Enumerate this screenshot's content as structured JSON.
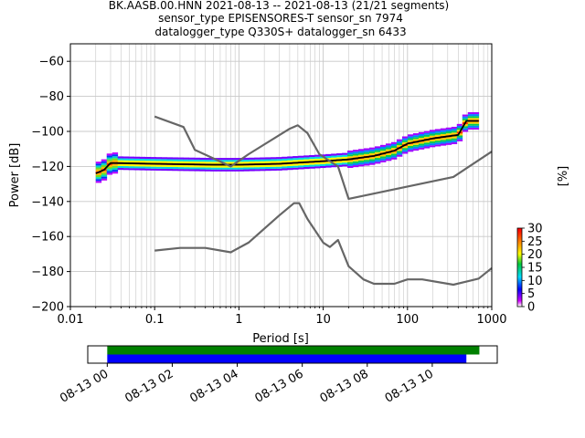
{
  "header": {
    "line1": "BK.AASB.00.HNN   2021-08-13 -- 2021-08-13  (21/21 segments)",
    "line2": "sensor_type EPISENSORES-T sensor_sn 7974",
    "line3": "datalogger_type Q330S+ datalogger_sn 6433"
  },
  "chart_data": [
    {
      "type": "heatmap",
      "xlabel": "Period [s]",
      "ylabel": "Power [dB]",
      "xscale": "log",
      "xlim": [
        0.01,
        1000
      ],
      "ylim": [
        -200,
        -50
      ],
      "grid": true,
      "xticks": [
        {
          "v": 0.01,
          "label": "0.01"
        },
        {
          "v": 0.1,
          "label": "0.1"
        },
        {
          "v": 1,
          "label": "1"
        },
        {
          "v": 10,
          "label": "10"
        },
        {
          "v": 100,
          "label": "100"
        },
        {
          "v": 1000,
          "label": "1000"
        }
      ],
      "yticks": [
        {
          "v": -60,
          "label": "−60"
        },
        {
          "v": -80,
          "label": "−80"
        },
        {
          "v": -100,
          "label": "−100"
        },
        {
          "v": -120,
          "label": "−120"
        },
        {
          "v": -140,
          "label": "−140"
        },
        {
          "v": -160,
          "label": "−160"
        },
        {
          "v": -180,
          "label": "−180"
        },
        {
          "v": -200,
          "label": "−200"
        }
      ],
      "series": [
        {
          "name": "",
          "color": "#000000",
          "points": [
            [
              0.02,
              -124
            ],
            [
              0.025,
              -122
            ],
            [
              0.03,
              -118
            ],
            [
              0.1,
              -118.5
            ],
            [
              0.5,
              -119
            ],
            [
              1,
              -119
            ],
            [
              3,
              -118.5
            ],
            [
              10,
              -117
            ],
            [
              20,
              -116
            ],
            [
              40,
              -114
            ],
            [
              70,
              -111
            ],
            [
              100,
              -107
            ],
            [
              200,
              -104
            ],
            [
              400,
              -102
            ],
            [
              500,
              -94
            ],
            [
              700,
              -94
            ]
          ]
        },
        {
          "name": "",
          "color": "#666666",
          "points": [
            [
              0.1,
              -91.5
            ],
            [
              0.22,
              -97.5
            ],
            [
              0.3,
              -110.5
            ],
            [
              0.8,
              -120
            ],
            [
              1.3,
              -113
            ],
            [
              4,
              -98.5
            ],
            [
              5,
              -96.5
            ],
            [
              6.5,
              -101
            ],
            [
              9,
              -113
            ],
            [
              15,
              -120
            ],
            [
              20,
              -138.5
            ],
            [
              350,
              -126
            ],
            [
              1000,
              -111.5
            ]
          ]
        },
        {
          "name": "",
          "color": "#666666",
          "points": [
            [
              0.1,
              -168
            ],
            [
              0.2,
              -166.5
            ],
            [
              0.4,
              -166.5
            ],
            [
              0.8,
              -169
            ],
            [
              1.3,
              -163.5
            ],
            [
              3,
              -148
            ],
            [
              4.5,
              -141
            ],
            [
              5.2,
              -141
            ],
            [
              6.5,
              -150
            ],
            [
              10,
              -163.5
            ],
            [
              12,
              -166
            ],
            [
              15,
              -162
            ],
            [
              20,
              -177
            ],
            [
              30,
              -184.5
            ],
            [
              40,
              -187
            ],
            [
              70,
              -187
            ],
            [
              100,
              -184.5
            ],
            [
              150,
              -184.5
            ],
            [
              350,
              -187.5
            ],
            [
              700,
              -184
            ],
            [
              1000,
              -178
            ]
          ]
        }
      ],
      "colorbar": {
        "label": "[%]",
        "range": [
          0,
          30
        ],
        "ticks": [
          "0",
          "5",
          "10",
          "15",
          "20",
          "25",
          "30"
        ]
      }
    },
    {
      "type": "bar",
      "xticks": [
        "08-13 00",
        "08-13 02",
        "08-13 04",
        "08-13 06",
        "08-13 08",
        "08-13 10"
      ],
      "xrange_hours": [
        -0.6,
        12.0
      ],
      "series": [
        {
          "name": "",
          "color": "#008000",
          "start_hour": 0.0,
          "end_hour": 11.45
        },
        {
          "name": "",
          "color": "#0000ff",
          "start_hour": 0.0,
          "end_hour": 11.05
        }
      ]
    }
  ]
}
